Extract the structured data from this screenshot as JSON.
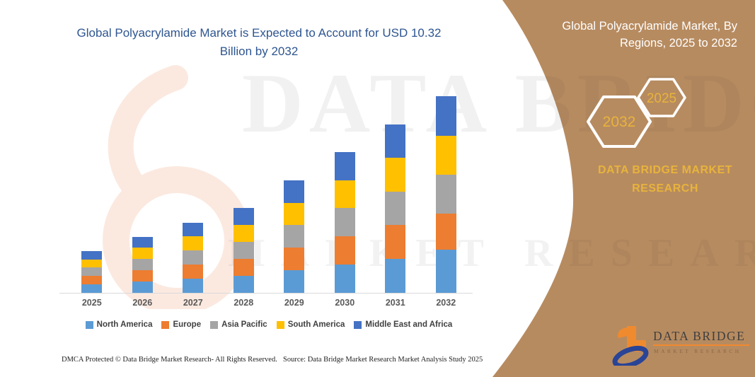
{
  "header": {
    "title": "Global Polyacrylamide Market is Expected to Account for USD 10.32 Billion by 2032"
  },
  "panel": {
    "heading": "Global Polyacrylamide Market, By Regions, 2025 to 2032",
    "hexagon_end_year": "2032",
    "hexagon_start_year": "2025",
    "brand_line1": "DATA BRIDGE MARKET",
    "brand_line2": "RESEARCH"
  },
  "logo": {
    "wordmark": "DATA BRIDGE",
    "tagline": "MARKET RESEARCH"
  },
  "watermark": {
    "row1": "DATA BRIDGE",
    "row2": "MARKET RESEARCH"
  },
  "footer": {
    "dmca": "DMCA Protected © Data Bridge Market Research-  All Rights Reserved.",
    "source": "Source: Data Bridge Market Research  Market Analysis Study 2025"
  },
  "colors": {
    "panel_brown": "#B78B60",
    "accent_gold": "#E7B33C",
    "title_blue": "#2E5590",
    "logo_orange": "#F08A2F",
    "logo_navy": "#2A4496",
    "axis_line": "#D9D9D9"
  },
  "chart_data": {
    "type": "bar",
    "stacked": true,
    "title": "Global Polyacrylamide Market is Expected to Account for USD 10.32 Billion by 2032",
    "unit": "USD Billion",
    "categories": [
      "2025",
      "2026",
      "2027",
      "2028",
      "2029",
      "2030",
      "2031",
      "2032"
    ],
    "series": [
      {
        "name": "North America",
        "color": "#5B9BD5",
        "values": [
          0.45,
          0.6,
          0.75,
          0.9,
          1.2,
          1.5,
          1.79,
          2.28
        ]
      },
      {
        "name": "Europe",
        "color": "#ED7D31",
        "values": [
          0.44,
          0.59,
          0.74,
          0.89,
          1.18,
          1.48,
          1.77,
          1.88
        ]
      },
      {
        "name": "Asia Pacific",
        "color": "#A5A5A5",
        "values": [
          0.44,
          0.59,
          0.74,
          0.89,
          1.18,
          1.47,
          1.76,
          2.04
        ]
      },
      {
        "name": "South America",
        "color": "#FFC000",
        "values": [
          0.44,
          0.59,
          0.74,
          0.89,
          1.17,
          1.48,
          1.77,
          2.07
        ]
      },
      {
        "name": "Middle East and Africa",
        "color": "#4472C4",
        "values": [
          0.43,
          0.58,
          0.73,
          0.88,
          1.17,
          1.47,
          1.76,
          2.05
        ]
      }
    ],
    "totals": [
      2.2,
      2.95,
      3.7,
      4.45,
      5.9,
      7.4,
      8.85,
      10.32
    ],
    "ylim": [
      0,
      10.32
    ],
    "gridlines": false,
    "axis_labels_shown": "x-only",
    "legend_position": "bottom"
  }
}
